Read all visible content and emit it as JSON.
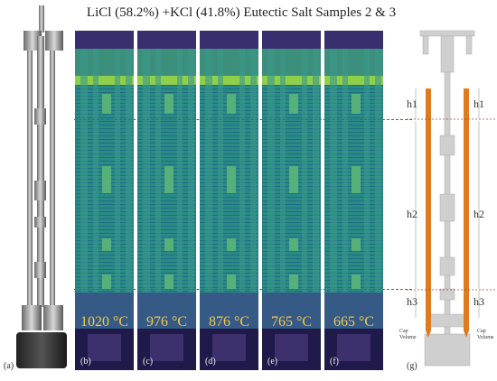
{
  "title": "LiCl (58.2%) +KCl (41.8%) Eutectic Salt Samples 2 & 3",
  "panels": [
    {
      "label": "(b)",
      "temperature": "1020 °C"
    },
    {
      "label": "(c)",
      "temperature": "976 °C"
    },
    {
      "label": "(d)",
      "temperature": "876 °C"
    },
    {
      "label": "(e)",
      "temperature": "765 °C"
    },
    {
      "label": "(f)",
      "temperature": "665 °C"
    }
  ],
  "label_a": "(a)",
  "label_g": "(g)",
  "diagram": {
    "h1_left": "h1",
    "h1_right": "h1",
    "h2_left": "h2",
    "h2_right": "h2",
    "h3_left": "h3",
    "h3_right": "h3",
    "cap_volume_left": "Cap Volume",
    "cap_volume_right": "Cap Volume"
  },
  "colors": {
    "salt": "#e07a1f",
    "temp_text": "#f3c64a",
    "dash": "#c0392b"
  }
}
